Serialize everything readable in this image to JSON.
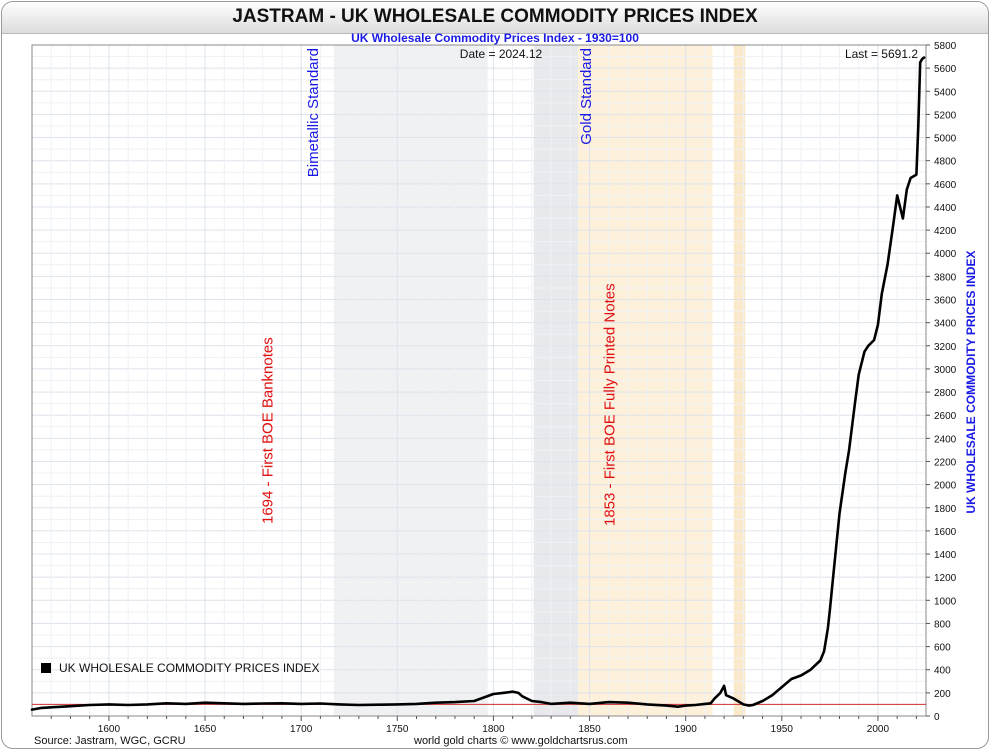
{
  "header": {
    "title": "JASTRAM - UK WHOLESALE COMMODITY PRICES INDEX",
    "subtitle": "UK Wholesale Commodity Prices Index - 1930=100"
  },
  "chart_data": {
    "type": "line",
    "title": "JASTRAM - UK WHOLESALE COMMODITY PRICES INDEX",
    "subtitle": "UK Wholesale Commodity Prices Index - 1930=100",
    "ylabel": "UK WHOLESALE COMMODITY PRICES INDEX",
    "xlabel": "",
    "xlim": [
      1560,
      2025
    ],
    "ylim": [
      0,
      5800
    ],
    "x_ticks": [
      1600,
      1650,
      1700,
      1750,
      1800,
      1850,
      1900,
      1950,
      2000
    ],
    "y_ticks": [
      0,
      200,
      400,
      600,
      800,
      1000,
      1200,
      1400,
      1600,
      1800,
      2000,
      2200,
      2400,
      2600,
      2800,
      3000,
      3200,
      3400,
      3600,
      3800,
      4000,
      4200,
      4400,
      4600,
      4800,
      5000,
      5200,
      5400,
      5600,
      5800
    ],
    "grid": true,
    "date_label": "Date = 2024.12",
    "last_label": "Last = 5691.2",
    "legend": {
      "position": "bottom-left",
      "entries": [
        "UK WHOLESALE COMMODITY PRICES INDEX"
      ]
    },
    "reference_line": {
      "y": 100,
      "color": "#d03030"
    },
    "bands": [
      {
        "start": 1717,
        "end": 1797,
        "color": "#f0f1f3"
      },
      {
        "start": 1821,
        "end": 1844,
        "color": "#e8e9ec"
      },
      {
        "start": 1844,
        "end": 1914,
        "color": "#fdf1dc"
      },
      {
        "start": 1925,
        "end": 1931,
        "color": "#fbe9cc"
      }
    ],
    "annotations": [
      {
        "text": "Bimetallic Standard",
        "x": 1718,
        "color": "#1a1ae6"
      },
      {
        "text": "Gold Standard",
        "x": 1845,
        "color": "#1a1ae6"
      },
      {
        "text": "1694 - First BOE Banknotes",
        "x": 1694,
        "color": "#e01010"
      },
      {
        "text": "1853 - First BOE Fully Printed Notes",
        "x": 1853,
        "color": "#e01010"
      }
    ],
    "series": [
      {
        "name": "UK WHOLESALE COMMODITY PRICES INDEX",
        "color": "#000000",
        "x": [
          1560,
          1565,
          1570,
          1580,
          1590,
          1600,
          1610,
          1620,
          1630,
          1640,
          1650,
          1660,
          1670,
          1680,
          1690,
          1700,
          1710,
          1720,
          1730,
          1740,
          1750,
          1760,
          1770,
          1780,
          1790,
          1795,
          1800,
          1805,
          1810,
          1813,
          1815,
          1820,
          1825,
          1830,
          1840,
          1850,
          1860,
          1870,
          1880,
          1890,
          1896,
          1900,
          1905,
          1910,
          1913,
          1915,
          1918,
          1920,
          1921,
          1925,
          1930,
          1933,
          1935,
          1940,
          1945,
          1950,
          1955,
          1960,
          1965,
          1970,
          1972,
          1974,
          1975,
          1977,
          1980,
          1983,
          1985,
          1988,
          1990,
          1993,
          1995,
          1998,
          2000,
          2002,
          2005,
          2008,
          2010,
          2013,
          2015,
          2017,
          2020,
          2021,
          2022,
          2023,
          2024
        ],
        "y": [
          55,
          70,
          75,
          85,
          95,
          100,
          95,
          100,
          110,
          105,
          115,
          110,
          105,
          108,
          110,
          105,
          108,
          100,
          95,
          98,
          100,
          105,
          115,
          120,
          130,
          160,
          190,
          200,
          210,
          200,
          170,
          130,
          120,
          105,
          115,
          105,
          120,
          115,
          100,
          90,
          80,
          90,
          95,
          105,
          110,
          150,
          200,
          260,
          180,
          150,
          100,
          90,
          95,
          130,
          180,
          250,
          320,
          350,
          400,
          480,
          560,
          760,
          920,
          1250,
          1750,
          2100,
          2300,
          2700,
          2950,
          3150,
          3200,
          3250,
          3380,
          3650,
          3900,
          4250,
          4500,
          4300,
          4550,
          4650,
          4680,
          5100,
          5650,
          5680,
          5691.2
        ]
      }
    ]
  },
  "footer": {
    "source": "Source: Jastram, WGC, GCRU",
    "credit": "world gold charts © www.goldchartsrus.com"
  }
}
